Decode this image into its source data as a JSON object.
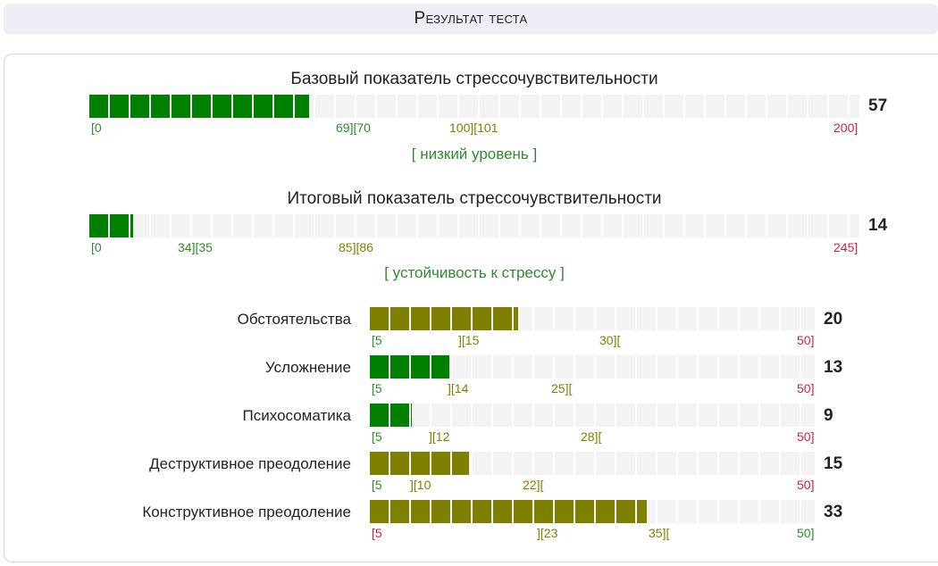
{
  "header": {
    "title": "Результат теста"
  },
  "colors": {
    "green": "#008000",
    "olive": "#808000",
    "red": "#cc1f4a",
    "track": "#f3f3f3"
  },
  "base": {
    "title": "Базовый показатель стрессочувствительности",
    "score": "57",
    "fill_fraction": 0.285,
    "level": "[ низкий уровень ]",
    "ticks": {
      "t0": "[0",
      "t1": "69][70",
      "t2": "100][101",
      "t3": "200]"
    }
  },
  "total": {
    "title": "Итоговый показатель стрессочувствительности",
    "score": "14",
    "fill_fraction": 0.057,
    "level": "[ устойчивость к стрессу ]",
    "ticks": {
      "t0": "[0",
      "t1": "34][35",
      "t2": "85][86",
      "t3": "245]"
    }
  },
  "scales": [
    {
      "label": "Обстоятельства",
      "score": "20",
      "fill_fraction": 0.333,
      "color": "olive",
      "ticks": {
        "t0": "[5",
        "t1": "][15",
        "t2": "30][",
        "t3": "50]"
      }
    },
    {
      "label": "Усложнение",
      "score": "13",
      "fill_fraction": 0.178,
      "color": "green",
      "ticks": {
        "t0": "[5",
        "t1": "][14",
        "t2": "25][",
        "t3": "50]"
      }
    },
    {
      "label": "Психосоматика",
      "score": "9",
      "fill_fraction": 0.094,
      "color": "green",
      "ticks": {
        "t0": "[5",
        "t1": "][12",
        "t2": "28][",
        "t3": "50]"
      }
    },
    {
      "label": "Деструктивное преодоление",
      "score": "15",
      "fill_fraction": 0.222,
      "color": "olive",
      "ticks": {
        "t0": "[5",
        "t1": "][10",
        "t2": "22][",
        "t3": "50]"
      }
    },
    {
      "label": "Конструктивное преодоление",
      "score": "33",
      "fill_fraction": 0.622,
      "color": "olive",
      "ticks": {
        "t0": "[5",
        "t1": "][23",
        "t2": "35][",
        "t3": "50]"
      }
    }
  ]
}
